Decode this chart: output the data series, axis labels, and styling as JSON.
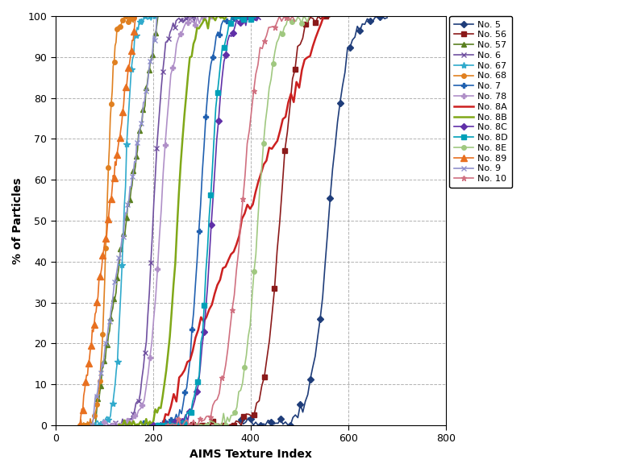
{
  "title": "",
  "xlabel": "AIMS Texture Index",
  "ylabel": "% of Particles",
  "xlim": [
    0,
    800
  ],
  "ylim": [
    0,
    100
  ],
  "xticks": [
    0,
    200,
    400,
    600,
    800
  ],
  "yticks": [
    0,
    10,
    20,
    30,
    40,
    50,
    60,
    70,
    80,
    90,
    100
  ],
  "series": [
    {
      "label": "No. 5",
      "color": "#1F3D7A",
      "marker": "D",
      "markersize": 4,
      "linewidth": 1.2,
      "x_start": 380,
      "x_end": 680,
      "x_mid": 560,
      "spread": 120,
      "linear": false,
      "markevery": 4
    },
    {
      "label": "No. 56",
      "color": "#8B1A1A",
      "marker": "s",
      "markersize": 4,
      "linewidth": 1.2,
      "x_start": 260,
      "x_end": 570,
      "x_mid": 460,
      "spread": 110,
      "linear": false,
      "markevery": 4
    },
    {
      "label": "No. 57",
      "color": "#5A8020",
      "marker": "^",
      "markersize": 4,
      "linewidth": 1.2,
      "x_start": 80,
      "x_end": 210,
      "x_mid": 145,
      "spread": 60,
      "linear": true,
      "markevery": 3
    },
    {
      "label": "No. 6",
      "color": "#7050A0",
      "marker": "x",
      "markersize": 5,
      "linewidth": 1.2,
      "x_start": 110,
      "x_end": 290,
      "x_mid": 200,
      "spread": 75,
      "linear": false,
      "markevery": 4
    },
    {
      "label": "No. 67",
      "color": "#30AACC",
      "marker": "*",
      "markersize": 6,
      "linewidth": 1.2,
      "x_start": 70,
      "x_end": 210,
      "x_mid": 140,
      "spread": 58,
      "linear": false,
      "markevery": 4
    },
    {
      "label": "No. 68",
      "color": "#E08020",
      "marker": "o",
      "markersize": 4,
      "linewidth": 1.2,
      "x_start": 50,
      "x_end": 165,
      "x_mid": 105,
      "spread": 48,
      "linear": false,
      "markevery": 3
    },
    {
      "label": "No. 7",
      "color": "#2060B0",
      "marker": "P",
      "markersize": 5,
      "linewidth": 1.2,
      "x_start": 180,
      "x_end": 390,
      "x_mid": 295,
      "spread": 85,
      "linear": false,
      "markevery": 4
    },
    {
      "label": "No. 78",
      "color": "#B090C8",
      "marker": "P",
      "markersize": 4,
      "linewidth": 1.2,
      "x_start": 100,
      "x_end": 330,
      "x_mid": 215,
      "spread": 90,
      "linear": false,
      "markevery": 4
    },
    {
      "label": "No. 8A",
      "color": "#CC2020",
      "marker": "None",
      "markersize": 4,
      "linewidth": 1.8,
      "x_start": 220,
      "x_end": 550,
      "x_mid": 390,
      "spread": 170,
      "linear": true,
      "markevery": null
    },
    {
      "label": "No. 8B",
      "color": "#80A818",
      "marker": "None",
      "markersize": 4,
      "linewidth": 1.8,
      "x_start": 130,
      "x_end": 350,
      "x_mid": 250,
      "spread": 85,
      "linear": false,
      "markevery": null
    },
    {
      "label": "No. 8C",
      "color": "#6030A8",
      "marker": "D",
      "markersize": 4,
      "linewidth": 1.2,
      "x_start": 200,
      "x_end": 420,
      "x_mid": 320,
      "spread": 90,
      "linear": false,
      "markevery": 4
    },
    {
      "label": "No. 8D",
      "color": "#00A0B8",
      "marker": "s",
      "markersize": 4,
      "linewidth": 1.2,
      "x_start": 210,
      "x_end": 410,
      "x_mid": 315,
      "spread": 80,
      "linear": false,
      "markevery": 4
    },
    {
      "label": "No. 8E",
      "color": "#A0C880",
      "marker": "o",
      "markersize": 4,
      "linewidth": 1.2,
      "x_start": 290,
      "x_end": 520,
      "x_mid": 415,
      "spread": 105,
      "linear": false,
      "markevery": 5
    },
    {
      "label": "No. 89",
      "color": "#E87020",
      "marker": "^",
      "markersize": 6,
      "linewidth": 1.2,
      "x_start": 50,
      "x_end": 165,
      "x_mid": 108,
      "spread": 52,
      "linear": true,
      "markevery": 3
    },
    {
      "label": "No. 9",
      "color": "#9090CC",
      "marker": "x",
      "markersize": 5,
      "linewidth": 1.2,
      "x_start": 75,
      "x_end": 210,
      "x_mid": 148,
      "spread": 58,
      "linear": true,
      "markevery": 4
    },
    {
      "label": "No. 10",
      "color": "#D07080",
      "marker": "*",
      "markersize": 5,
      "linewidth": 1.2,
      "x_start": 230,
      "x_end": 490,
      "x_mid": 380,
      "spread": 125,
      "linear": false,
      "markevery": 5
    }
  ]
}
